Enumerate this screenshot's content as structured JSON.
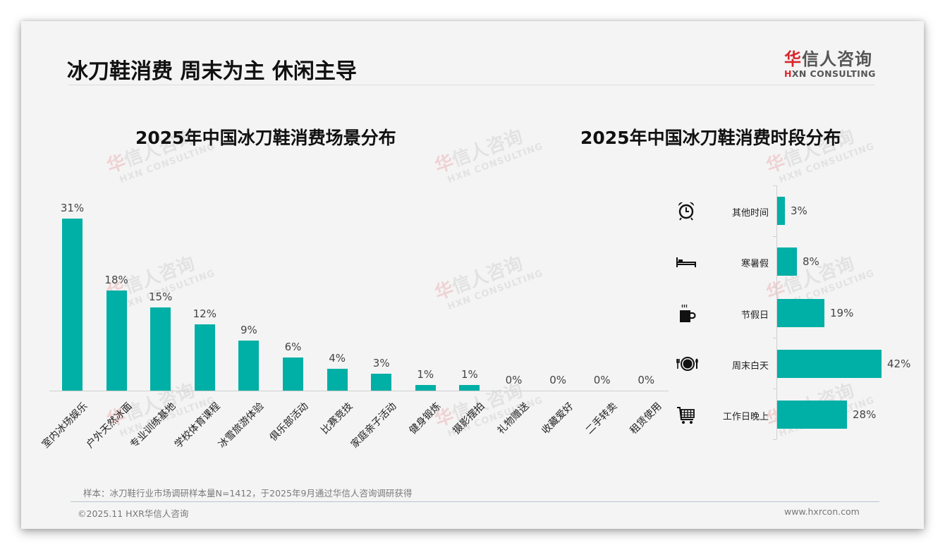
{
  "header": {
    "title": "冰刀鞋消费 周末为主 休闲主导",
    "logo_cn_first": "华",
    "logo_cn_rest": "信人咨询",
    "logo_en_first": "H",
    "logo_en_rest": "XN CONSULTING"
  },
  "watermark": {
    "cn_first": "华",
    "cn_rest": "信人咨询",
    "en": "HXN CONSULTING"
  },
  "colors": {
    "bar": "#00afa5",
    "brand_red": "#d7262c",
    "background": "#f4f4f4"
  },
  "chart_data": [
    {
      "type": "bar",
      "title": "2025年中国冰刀鞋消费场景分布",
      "xlabel": "",
      "ylabel": "",
      "ylim": [
        0,
        31
      ],
      "grid": false,
      "legend": null,
      "categories": [
        "室内冰场娱乐",
        "户外天然冰面",
        "专业训练基地",
        "学校体育课程",
        "冰雪旅游体验",
        "俱乐部活动",
        "比赛竞技",
        "家庭亲子活动",
        "健身锻炼",
        "摄影摆拍",
        "礼物赠送",
        "收藏爱好",
        "二手转卖",
        "租赁使用"
      ],
      "values": [
        31,
        18,
        15,
        12,
        9,
        6,
        4,
        3,
        1,
        1,
        0,
        0,
        0,
        0
      ],
      "value_labels": [
        "31%",
        "18%",
        "15%",
        "12%",
        "9%",
        "6%",
        "4%",
        "3%",
        "1%",
        "1%",
        "0%",
        "0%",
        "0%",
        "0%"
      ],
      "unit": "%"
    },
    {
      "type": "bar",
      "orientation": "horizontal",
      "title": "2025年中国冰刀鞋消费时段分布",
      "xlabel": "",
      "ylabel": "",
      "grid": false,
      "legend": null,
      "categories": [
        "其他时间",
        "寒暑假",
        "节假日",
        "周末白天",
        "工作日晚上"
      ],
      "values": [
        3,
        8,
        19,
        42,
        28
      ],
      "value_labels": [
        "3%",
        "8%",
        "19%",
        "42%",
        "28%"
      ],
      "icons": [
        "alarm-clock-icon",
        "bed-icon",
        "coffee-cup-icon",
        "plate-cutlery-icon",
        "shopping-cart-icon"
      ],
      "unit": "%"
    }
  ],
  "footer": {
    "note": "样本：冰刀鞋行业市场调研样本量N=1412，于2025年9月通过华信人咨询调研获得",
    "copyright": "©2025.11 HXR华信人咨询",
    "website": "www.hxrcon.com"
  }
}
